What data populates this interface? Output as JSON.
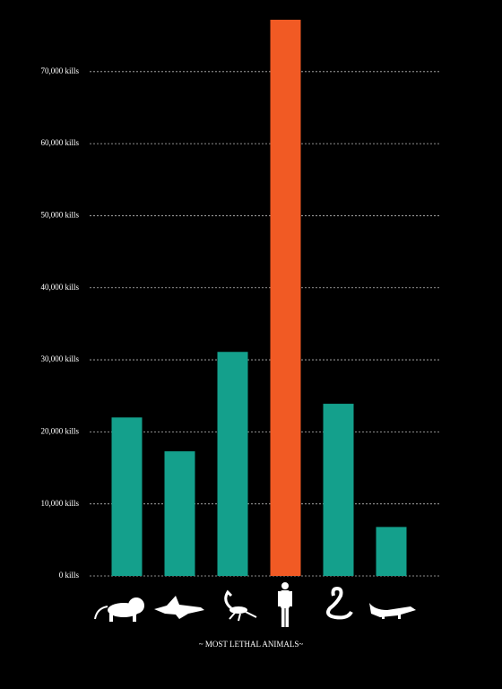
{
  "chart_data": {
    "type": "bar",
    "title": "~ MOST LETHAL ANIMALS~",
    "categories": [
      null,
      null,
      null,
      null,
      null,
      null
    ],
    "values": [
      22000,
      17300,
      31100,
      77200,
      23900,
      6800
    ],
    "colors": [
      "#14a08c",
      "#14a08c",
      "#14a08c",
      "#f15a24",
      "#14a08c",
      "#14a08c"
    ],
    "ylim": [
      0,
      77200
    ],
    "yticks": [
      {
        "value": 0,
        "label": "0 kills"
      },
      {
        "value": 10000,
        "label": "10,000 kills"
      },
      {
        "value": 20000,
        "label": "20,000 kills"
      },
      {
        "value": 30000,
        "label": "30,000 kills"
      },
      {
        "value": 40000,
        "label": "40,000 kills"
      },
      {
        "value": 50000,
        "label": "50,000 kills"
      },
      {
        "value": 60000,
        "label": "60,000 kills"
      },
      {
        "value": 70000,
        "label": "70,000 kills"
      }
    ],
    "grid": true
  }
}
